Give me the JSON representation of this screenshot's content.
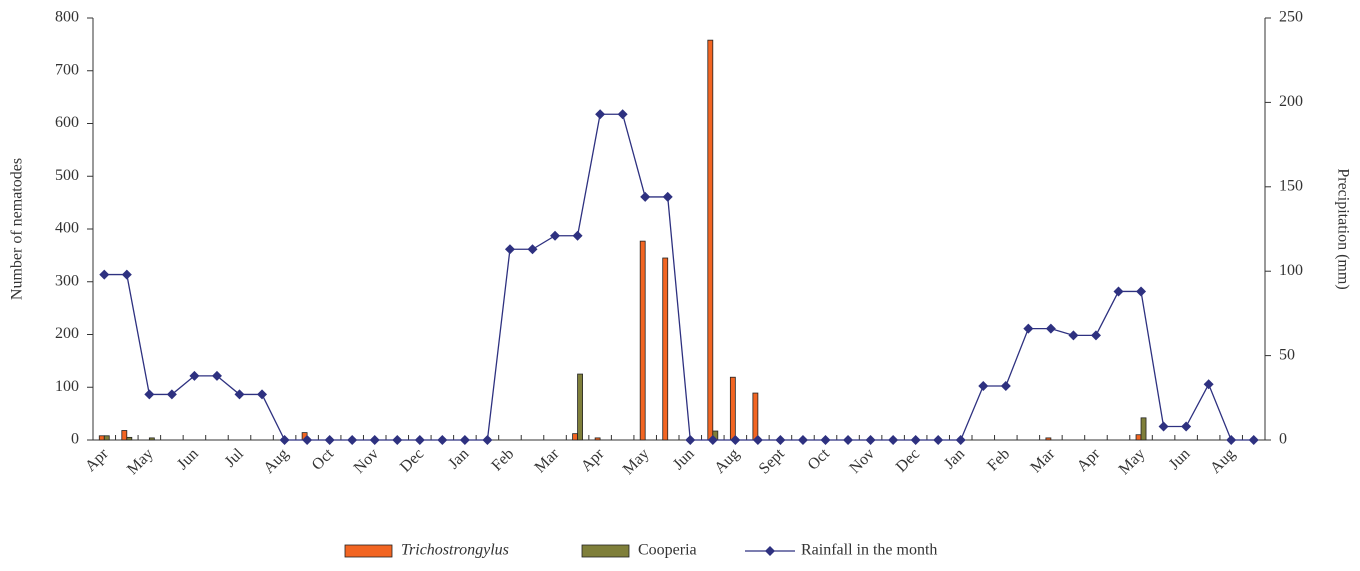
{
  "chart_data": {
    "type": "bar",
    "categories": [
      "Apr",
      null,
      "May",
      null,
      "Jun",
      null,
      "Jul",
      null,
      "Aug",
      null,
      "Oct",
      null,
      "Nov",
      null,
      "Dec",
      null,
      "Jan",
      null,
      "Feb",
      null,
      "Mar",
      null,
      "Apr",
      null,
      "May",
      null,
      "Jun",
      null,
      "Aug",
      null,
      "Sept",
      null,
      "Oct",
      null,
      "Nov",
      null,
      "Dec",
      null,
      "Jan",
      null,
      "Feb",
      null,
      "Mar",
      null,
      "Apr",
      null,
      "May",
      null,
      "Jun",
      null,
      "Aug",
      null
    ],
    "y_label": "Number of nematodes",
    "y2_label": "Precipitation (mm)",
    "ylim": [
      0,
      800
    ],
    "yticks": [
      0,
      100,
      200,
      300,
      400,
      500,
      600,
      700,
      800
    ],
    "y2lim": [
      0,
      250
    ],
    "y2ticks": [
      0,
      50,
      100,
      150,
      200,
      250
    ],
    "series": [
      {
        "name": "Trichostrongylus",
        "color": "#f26522",
        "values": [
          8,
          18,
          0,
          0,
          0,
          0,
          0,
          0,
          0,
          14,
          0,
          0,
          0,
          0,
          0,
          0,
          0,
          0,
          0,
          0,
          0,
          12,
          4,
          0,
          377,
          345,
          0,
          758,
          119,
          89,
          0,
          0,
          0,
          0,
          0,
          0,
          0,
          0,
          0,
          0,
          0,
          0,
          4,
          0,
          0,
          0,
          10,
          0,
          0,
          0,
          0,
          0
        ]
      },
      {
        "name": "Cooperia",
        "color": "#7f7f3a",
        "values": [
          8,
          5,
          4,
          0,
          0,
          0,
          0,
          0,
          0,
          0,
          0,
          0,
          0,
          0,
          0,
          0,
          0,
          0,
          0,
          0,
          0,
          125,
          0,
          0,
          0,
          0,
          0,
          17,
          0,
          0,
          0,
          0,
          0,
          0,
          0,
          0,
          0,
          0,
          0,
          0,
          0,
          0,
          0,
          0,
          0,
          0,
          42,
          0,
          0,
          0,
          0,
          0
        ]
      },
      {
        "name": "Rainfall in the month",
        "color": "#2e3180",
        "type": "line",
        "axis": "y2",
        "values": [
          98,
          98,
          27,
          27,
          38,
          38,
          27,
          27,
          0,
          0,
          0,
          0,
          0,
          0,
          0,
          0,
          0,
          0,
          113,
          113,
          121,
          121,
          193,
          193,
          144,
          144,
          0,
          0,
          0,
          0,
          0,
          0,
          0,
          0,
          0,
          0,
          0,
          0,
          0,
          32,
          32,
          66,
          66,
          62,
          62,
          88,
          88,
          8,
          8,
          33,
          0,
          0
        ]
      }
    ]
  }
}
